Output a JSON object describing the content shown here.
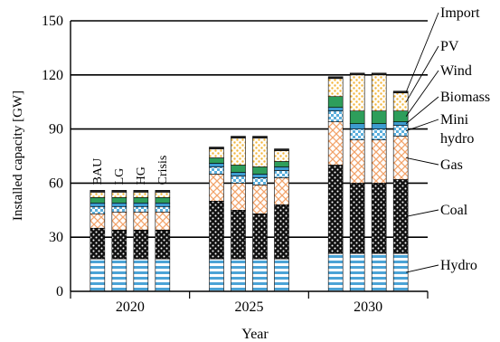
{
  "chart_data": {
    "type": "bar",
    "stacked": true,
    "ylabel": "Installed capacity [GW]",
    "xlabel": "Year",
    "ylim": [
      0,
      150
    ],
    "yticks": [
      "0",
      "30",
      "60",
      "90",
      "120",
      "150"
    ],
    "year_groups": [
      "2020",
      "2025",
      "2030"
    ],
    "scenarios": [
      "BAU",
      "LG",
      "HG",
      "Crisis"
    ],
    "grid": "horizontal",
    "legend": "right, labels with leader lines",
    "series": [
      {
        "name": "Hydro",
        "color": "#4ba3d6",
        "pattern": "horizontal-stripes",
        "values": [
          [
            18,
            18,
            18,
            18
          ],
          [
            18,
            18,
            18,
            18
          ],
          [
            21,
            21,
            21,
            21
          ]
        ]
      },
      {
        "name": "Coal",
        "color": "#000000",
        "pattern": "dots",
        "values": [
          [
            17,
            16,
            16,
            16
          ],
          [
            32,
            27,
            25,
            30
          ],
          [
            49,
            39,
            39,
            41
          ]
        ]
      },
      {
        "name": "Gas",
        "color": "#f2a36a",
        "pattern": "crosshatch",
        "values": [
          [
            8,
            10,
            10,
            10
          ],
          [
            15,
            15,
            16,
            15
          ],
          [
            24,
            24,
            24,
            24
          ]
        ]
      },
      {
        "name": "Mini hydro",
        "color": "#ffffff",
        "pattern": "checker",
        "values": [
          [
            4,
            3,
            3,
            3
          ],
          [
            4,
            4,
            4,
            4
          ],
          [
            6,
            6,
            6,
            6
          ]
        ]
      },
      {
        "name": "Biomass",
        "color": "#3d9bd0",
        "pattern": "solid",
        "values": [
          [
            2,
            2,
            2,
            2
          ],
          [
            2,
            2,
            2,
            2
          ],
          [
            2,
            3,
            3,
            2
          ]
        ]
      },
      {
        "name": "Wind",
        "color": "#2e9e5b",
        "pattern": "solid",
        "values": [
          [
            3,
            3,
            3,
            3
          ],
          [
            3,
            4,
            4,
            3
          ],
          [
            6,
            7,
            7,
            6
          ]
        ]
      },
      {
        "name": "PV",
        "color": "#f4b63a",
        "pattern": "dots",
        "values": [
          [
            3,
            3,
            3,
            3
          ],
          [
            5,
            15,
            16,
            6
          ],
          [
            10,
            20,
            20,
            10
          ]
        ]
      },
      {
        "name": "Import",
        "color": "#222222",
        "pattern": "solid",
        "values": [
          [
            1,
            1,
            1,
            1
          ],
          [
            1,
            1,
            1,
            1
          ],
          [
            1,
            1,
            1,
            1
          ]
        ]
      }
    ],
    "legend_labels": [
      {
        "text": "Import",
        "series": "Import"
      },
      {
        "text": "PV",
        "series": "PV"
      },
      {
        "text": "Wind",
        "series": "Wind"
      },
      {
        "text": "Biomass",
        "series": "Biomass"
      },
      {
        "text": "Mini",
        "series": "Mini hydro"
      },
      {
        "text": "hydro",
        "series": "Mini hydro"
      },
      {
        "text": "Gas",
        "series": "Gas"
      },
      {
        "text": "Coal",
        "series": "Coal"
      },
      {
        "text": "Hydro",
        "series": "Hydro"
      }
    ]
  }
}
